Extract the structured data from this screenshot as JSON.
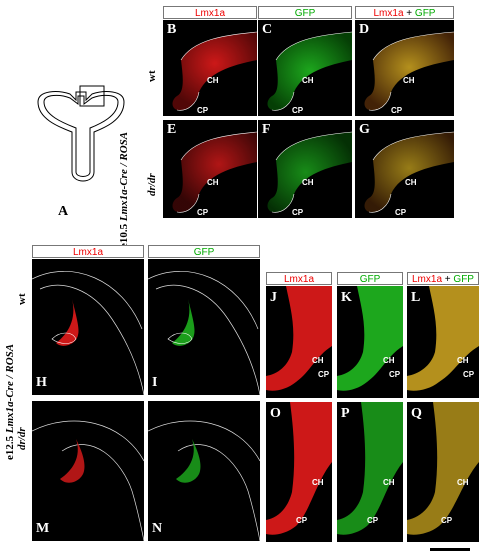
{
  "top": {
    "headers": {
      "lmx": "Lmx1a",
      "gfp": "GFP",
      "merge_red": "Lmx1a",
      "merge_plus": " + ",
      "merge_green": "GFP"
    },
    "side_outer_a": "e10.5 ",
    "side_outer_b": "Lmx1a-Cre / ROSA",
    "row1": "wt",
    "row2": "dr/dr",
    "panels": [
      "B",
      "C",
      "D",
      "E",
      "F",
      "G"
    ],
    "ch": "CH",
    "cp": "CP"
  },
  "schematic_label": "A",
  "bottom": {
    "headers": {
      "lmx": "Lmx1a",
      "gfp": "GFP",
      "merge_red": "Lmx1a",
      "merge_plus": " + ",
      "merge_green": "GFP"
    },
    "side_outer_a": "e12.5 ",
    "side_outer_b": "Lmx1a-Cre / ROSA",
    "row1": "wt",
    "row2": "dr/dr",
    "panels_overview": [
      "H",
      "I",
      "M",
      "N"
    ],
    "panels_zoom": [
      "J",
      "K",
      "L",
      "O",
      "P",
      "Q"
    ],
    "ch": "CH",
    "cp": "CP"
  },
  "colors": {
    "red": "#e31b1b",
    "green": "#22c422",
    "merge": "#c8a020"
  }
}
